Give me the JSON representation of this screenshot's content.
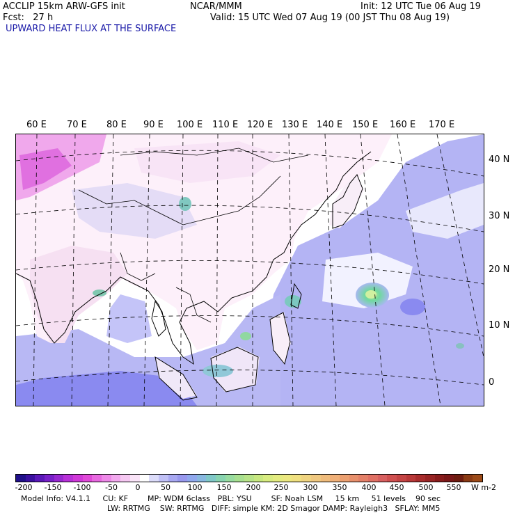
{
  "header": {
    "line1_left": "ACCLIP 15km ARW-GFS init",
    "line1_center": "NCAR/MMM",
    "line1_right": "Init: 12 UTC Tue 06 Aug 19",
    "line2_left": "Fcst:   27 h",
    "line2_right": "Valid: 15 UTC Wed 07 Aug 19 (00 JST Thu 08 Aug 19)",
    "field_title": "UPWARD HEAT FLUX AT THE SURFACE"
  },
  "map": {
    "lon_labels": [
      "60 E",
      "70 E",
      "80 E",
      "90 E",
      "100 E",
      "110 E",
      "120 E",
      "130 E",
      "140 E",
      "150 E",
      "160 E",
      "170 E"
    ],
    "lat_labels": [
      "40 N",
      "30 N",
      "20 N",
      "10 N",
      "0"
    ]
  },
  "colorbar": {
    "tick_labels": [
      "-200",
      "-150",
      "-100",
      "-50",
      "0",
      "50",
      "100",
      "150",
      "200",
      "250",
      "300",
      "350",
      "400",
      "450",
      "500",
      "550"
    ],
    "units": "W m-2"
  },
  "footer": {
    "line1": "Model Info: V4.1.1     CU: KF        MP: WDM 6class   PBL: YSU        SF: Noah LSM     15 km     51 levels    90 sec",
    "line2": "LW: RRTMG    SW: RRTMG   DIFF: simple KM: 2D Smagor DAMP: Rayleigh3   SFLAY: MM5"
  }
}
